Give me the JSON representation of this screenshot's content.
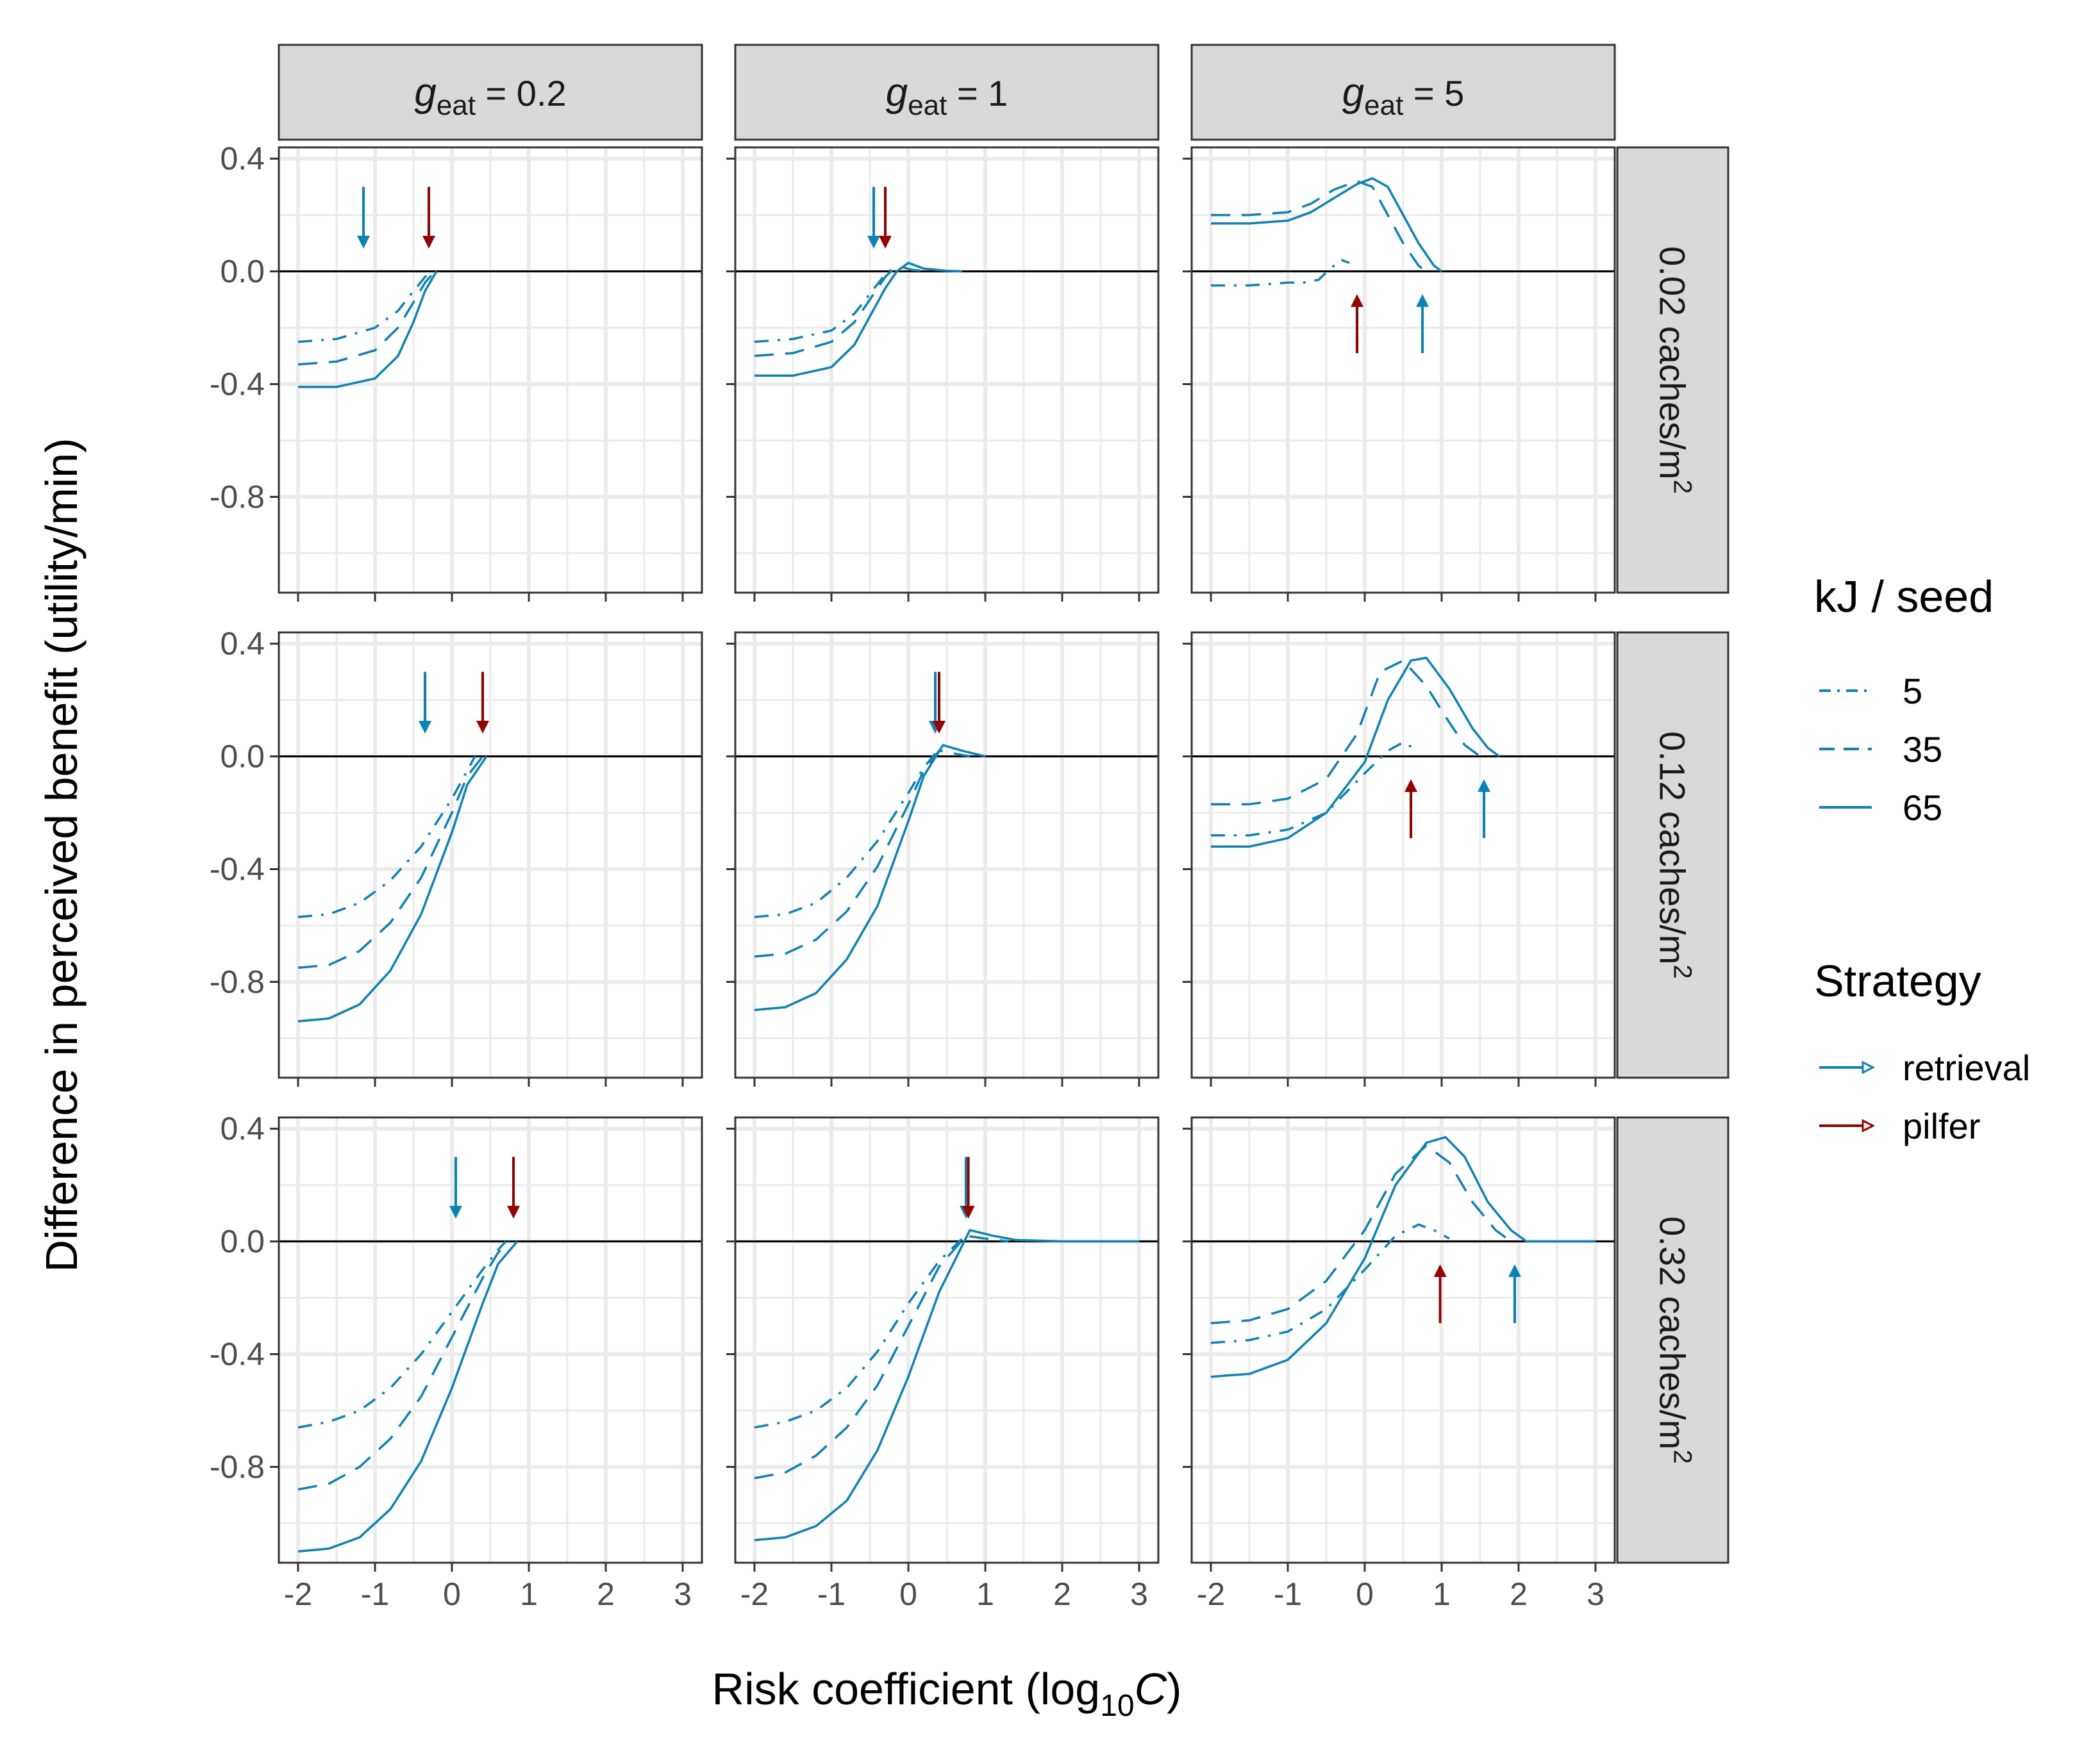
{
  "chart_data": {
    "type": "line",
    "title": "",
    "xlabel": "Risk coefficient (log10C)",
    "ylabel": "Difference in perceived benefit (utility/min)",
    "xlim": [
      -2.25,
      3.25
    ],
    "ylim": [
      -1.14,
      0.44
    ],
    "x_ticks": [
      -2,
      -1,
      0,
      1,
      2,
      3
    ],
    "x_tick_labels": [
      "-2",
      "-1",
      "0",
      "1",
      "2",
      "3"
    ],
    "y_ticks": [
      0.4,
      0.0,
      -0.4,
      -0.8
    ],
    "y_tick_labels": [
      "0.4",
      "0.0",
      "-0.4",
      "-0.8"
    ],
    "col_facets": [
      {
        "prefix": "g",
        "subscript": "eat",
        "suffix": " = 0.2"
      },
      {
        "prefix": "g",
        "subscript": "eat",
        "suffix": " = 1"
      },
      {
        "prefix": "g",
        "subscript": "eat",
        "suffix": " = 5"
      }
    ],
    "row_facets": [
      {
        "label": "0.02 caches/m",
        "sup": "2"
      },
      {
        "label": "0.12 caches/m",
        "sup": "2"
      },
      {
        "label": "0.32 caches/m",
        "sup": "2"
      }
    ],
    "series_color": "#0a84b8",
    "legend": {
      "kj_title": "kJ / seed",
      "kj_items": [
        {
          "label": "5",
          "dash": "dotdash"
        },
        {
          "label": "35",
          "dash": "dashed"
        },
        {
          "label": "65",
          "dash": "solid"
        }
      ],
      "strategy_title": "Strategy",
      "strategy_items": [
        {
          "label": "retrieval",
          "color": "#0a84b8"
        },
        {
          "label": "pilfer",
          "color": "#990000"
        }
      ]
    },
    "panels": [
      {
        "row": 0,
        "col": 0,
        "series": [
          {
            "name": "5",
            "x": [
              -2,
              -1.5,
              -1,
              -0.7,
              -0.5,
              -0.35,
              -0.25
            ],
            "y": [
              -0.25,
              -0.24,
              -0.2,
              -0.14,
              -0.07,
              -0.02,
              0
            ]
          },
          {
            "name": "35",
            "x": [
              -2,
              -1.5,
              -1,
              -0.7,
              -0.5,
              -0.35,
              -0.22
            ],
            "y": [
              -0.33,
              -0.32,
              -0.28,
              -0.2,
              -0.11,
              -0.04,
              0
            ]
          },
          {
            "name": "65",
            "x": [
              -2,
              -1.5,
              -1,
              -0.7,
              -0.5,
              -0.35,
              -0.2
            ],
            "y": [
              -0.41,
              -0.41,
              -0.38,
              -0.3,
              -0.18,
              -0.07,
              0
            ]
          }
        ],
        "arrows": [
          {
            "strategy": "retrieval",
            "x": -1.15,
            "direction": "down"
          },
          {
            "strategy": "pilfer",
            "x": -0.3,
            "direction": "down"
          }
        ]
      },
      {
        "row": 0,
        "col": 1,
        "series": [
          {
            "name": "5",
            "x": [
              -2,
              -1.5,
              -1,
              -0.7,
              -0.5,
              -0.3,
              -0.2
            ],
            "y": [
              -0.25,
              -0.24,
              -0.21,
              -0.15,
              -0.08,
              -0.01,
              0.01
            ]
          },
          {
            "name": "35",
            "x": [
              -2,
              -1.5,
              -1,
              -0.7,
              -0.5,
              -0.3,
              -0.15,
              0.05,
              0.3
            ],
            "y": [
              -0.3,
              -0.29,
              -0.25,
              -0.18,
              -0.1,
              -0.02,
              0.02,
              0.005,
              0
            ]
          },
          {
            "name": "65",
            "x": [
              -2,
              -1.5,
              -1,
              -0.7,
              -0.5,
              -0.3,
              -0.15,
              0.0,
              0.2,
              0.5,
              0.7
            ],
            "y": [
              -0.37,
              -0.37,
              -0.34,
              -0.26,
              -0.16,
              -0.06,
              0.0,
              0.03,
              0.01,
              0.002,
              0
            ]
          }
        ],
        "arrows": [
          {
            "strategy": "retrieval",
            "x": -0.45,
            "direction": "down"
          },
          {
            "strategy": "pilfer",
            "x": -0.3,
            "direction": "down"
          }
        ]
      },
      {
        "row": 0,
        "col": 2,
        "series": [
          {
            "name": "5",
            "x": [
              -2,
              -1.5,
              -1,
              -0.8,
              -0.6,
              -0.45,
              -0.3,
              -0.2
            ],
            "y": [
              -0.05,
              -0.05,
              -0.04,
              -0.04,
              -0.03,
              0.01,
              0.04,
              0.03
            ]
          },
          {
            "name": "35",
            "x": [
              -2,
              -1.5,
              -1,
              -0.7,
              -0.4,
              -0.1,
              0.1,
              0.3,
              0.5,
              0.7,
              0.8
            ],
            "y": [
              0.2,
              0.2,
              0.21,
              0.24,
              0.29,
              0.32,
              0.3,
              0.2,
              0.1,
              0.02,
              0
            ]
          },
          {
            "name": "65",
            "x": [
              -2,
              -1.5,
              -1,
              -0.7,
              -0.4,
              -0.1,
              0.1,
              0.3,
              0.5,
              0.7,
              0.9,
              1.0
            ],
            "y": [
              0.17,
              0.17,
              0.18,
              0.21,
              0.26,
              0.31,
              0.33,
              0.3,
              0.2,
              0.1,
              0.02,
              0
            ]
          }
        ],
        "arrows": [
          {
            "strategy": "pilfer",
            "x": -0.1,
            "direction": "up"
          },
          {
            "strategy": "retrieval",
            "x": 0.75,
            "direction": "up"
          }
        ]
      },
      {
        "row": 1,
        "col": 0,
        "series": [
          {
            "name": "5",
            "x": [
              -2,
              -1.6,
              -1.2,
              -0.8,
              -0.4,
              0,
              0.2,
              0.3
            ],
            "y": [
              -0.57,
              -0.56,
              -0.52,
              -0.44,
              -0.32,
              -0.15,
              -0.05,
              0
            ]
          },
          {
            "name": "35",
            "x": [
              -2,
              -1.6,
              -1.2,
              -0.8,
              -0.4,
              0,
              0.2,
              0.4
            ],
            "y": [
              -0.75,
              -0.74,
              -0.69,
              -0.59,
              -0.43,
              -0.2,
              -0.07,
              0
            ]
          },
          {
            "name": "65",
            "x": [
              -2,
              -1.6,
              -1.2,
              -0.8,
              -0.4,
              0,
              0.2,
              0.45
            ],
            "y": [
              -0.94,
              -0.93,
              -0.88,
              -0.76,
              -0.56,
              -0.27,
              -0.1,
              0
            ]
          }
        ],
        "arrows": [
          {
            "strategy": "retrieval",
            "x": -0.35,
            "direction": "down"
          },
          {
            "strategy": "pilfer",
            "x": 0.4,
            "direction": "down"
          }
        ]
      },
      {
        "row": 1,
        "col": 1,
        "series": [
          {
            "name": "5",
            "x": [
              -2,
              -1.6,
              -1.2,
              -0.8,
              -0.4,
              0,
              0.2,
              0.35
            ],
            "y": [
              -0.57,
              -0.56,
              -0.52,
              -0.43,
              -0.3,
              -0.13,
              -0.04,
              0.01
            ]
          },
          {
            "name": "35",
            "x": [
              -2,
              -1.6,
              -1.2,
              -0.8,
              -0.4,
              0,
              0.2,
              0.4,
              0.6,
              0.8
            ],
            "y": [
              -0.71,
              -0.7,
              -0.65,
              -0.55,
              -0.39,
              -0.17,
              -0.05,
              0.02,
              0.01,
              0
            ]
          },
          {
            "name": "65",
            "x": [
              -2,
              -1.6,
              -1.2,
              -0.8,
              -0.4,
              0,
              0.2,
              0.45,
              0.7,
              1.0
            ],
            "y": [
              -0.9,
              -0.89,
              -0.84,
              -0.72,
              -0.53,
              -0.23,
              -0.07,
              0.04,
              0.02,
              0
            ]
          }
        ],
        "arrows": [
          {
            "strategy": "retrieval",
            "x": 0.35,
            "direction": "down"
          },
          {
            "strategy": "pilfer",
            "x": 0.4,
            "direction": "down"
          }
        ]
      },
      {
        "row": 1,
        "col": 2,
        "series": [
          {
            "name": "5",
            "x": [
              -2,
              -1.5,
              -1,
              -0.5,
              0,
              0.3,
              0.5,
              0.7
            ],
            "y": [
              -0.28,
              -0.28,
              -0.26,
              -0.2,
              -0.06,
              0.02,
              0.05,
              0.02
            ]
          },
          {
            "name": "35",
            "x": [
              -2,
              -1.5,
              -1,
              -0.5,
              -0.1,
              0.2,
              0.5,
              0.8,
              1.1,
              1.3,
              1.5
            ],
            "y": [
              -0.17,
              -0.17,
              -0.15,
              -0.08,
              0.08,
              0.3,
              0.34,
              0.25,
              0.12,
              0.04,
              0
            ]
          },
          {
            "name": "65",
            "x": [
              -2,
              -1.5,
              -1,
              -0.5,
              0,
              0.3,
              0.6,
              0.8,
              1.1,
              1.4,
              1.6,
              1.75
            ],
            "y": [
              -0.32,
              -0.32,
              -0.29,
              -0.2,
              -0.02,
              0.2,
              0.34,
              0.35,
              0.24,
              0.1,
              0.03,
              0
            ]
          }
        ],
        "arrows": [
          {
            "strategy": "pilfer",
            "x": 0.6,
            "direction": "up"
          },
          {
            "strategy": "retrieval",
            "x": 1.55,
            "direction": "up"
          }
        ]
      },
      {
        "row": 2,
        "col": 0,
        "series": [
          {
            "name": "5",
            "x": [
              -2,
              -1.6,
              -1.2,
              -0.8,
              -0.4,
              0,
              0.4,
              0.6,
              0.7
            ],
            "y": [
              -0.66,
              -0.64,
              -0.6,
              -0.52,
              -0.4,
              -0.25,
              -0.1,
              -0.03,
              0
            ]
          },
          {
            "name": "35",
            "x": [
              -2,
              -1.6,
              -1.2,
              -0.8,
              -0.4,
              0,
              0.4,
              0.6,
              0.75
            ],
            "y": [
              -0.88,
              -0.86,
              -0.8,
              -0.7,
              -0.55,
              -0.34,
              -0.13,
              -0.04,
              0
            ]
          },
          {
            "name": "65",
            "x": [
              -2,
              -1.6,
              -1.2,
              -0.8,
              -0.4,
              0,
              0.4,
              0.6,
              0.85
            ],
            "y": [
              -1.1,
              -1.09,
              -1.05,
              -0.95,
              -0.78,
              -0.52,
              -0.22,
              -0.08,
              0
            ]
          }
        ],
        "arrows": [
          {
            "strategy": "retrieval",
            "x": 0.05,
            "direction": "down"
          },
          {
            "strategy": "pilfer",
            "x": 0.8,
            "direction": "down"
          }
        ]
      },
      {
        "row": 2,
        "col": 1,
        "series": [
          {
            "name": "5",
            "x": [
              -2,
              -1.6,
              -1.2,
              -0.8,
              -0.4,
              0,
              0.4,
              0.7
            ],
            "y": [
              -0.66,
              -0.64,
              -0.6,
              -0.52,
              -0.39,
              -0.22,
              -0.07,
              0.01
            ]
          },
          {
            "name": "35",
            "x": [
              -2,
              -1.6,
              -1.2,
              -0.8,
              -0.4,
              0,
              0.4,
              0.75,
              1.0,
              1.3
            ],
            "y": [
              -0.84,
              -0.82,
              -0.76,
              -0.66,
              -0.51,
              -0.3,
              -0.09,
              0.02,
              0.01,
              0
            ]
          },
          {
            "name": "65",
            "x": [
              -2,
              -1.6,
              -1.2,
              -0.8,
              -0.4,
              0,
              0.4,
              0.8,
              1.1,
              1.4,
              2.0,
              3.0
            ],
            "y": [
              -1.06,
              -1.05,
              -1.01,
              -0.92,
              -0.74,
              -0.48,
              -0.18,
              0.04,
              0.02,
              0.005,
              0,
              0
            ]
          }
        ],
        "arrows": [
          {
            "strategy": "retrieval",
            "x": 0.75,
            "direction": "down"
          },
          {
            "strategy": "pilfer",
            "x": 0.78,
            "direction": "down"
          }
        ]
      },
      {
        "row": 2,
        "col": 2,
        "series": [
          {
            "name": "5",
            "x": [
              -2,
              -1.5,
              -1,
              -0.5,
              0,
              0.4,
              0.7,
              0.9,
              1.1
            ],
            "y": [
              -0.36,
              -0.35,
              -0.32,
              -0.24,
              -0.1,
              0.02,
              0.06,
              0.04,
              0.01
            ]
          },
          {
            "name": "35",
            "x": [
              -2,
              -1.5,
              -1,
              -0.5,
              0,
              0.4,
              0.8,
              1.1,
              1.4,
              1.7,
              1.9
            ],
            "y": [
              -0.29,
              -0.28,
              -0.24,
              -0.14,
              0.04,
              0.24,
              0.34,
              0.28,
              0.14,
              0.04,
              0
            ]
          },
          {
            "name": "65",
            "x": [
              -2,
              -1.5,
              -1,
              -0.5,
              0,
              0.4,
              0.8,
              1.05,
              1.3,
              1.6,
              1.9,
              2.1,
              3.0
            ],
            "y": [
              -0.48,
              -0.47,
              -0.42,
              -0.29,
              -0.06,
              0.2,
              0.35,
              0.37,
              0.3,
              0.14,
              0.04,
              0,
              0
            ]
          }
        ],
        "arrows": [
          {
            "strategy": "pilfer",
            "x": 0.98,
            "direction": "up"
          },
          {
            "strategy": "retrieval",
            "x": 1.95,
            "direction": "up"
          }
        ]
      }
    ]
  }
}
